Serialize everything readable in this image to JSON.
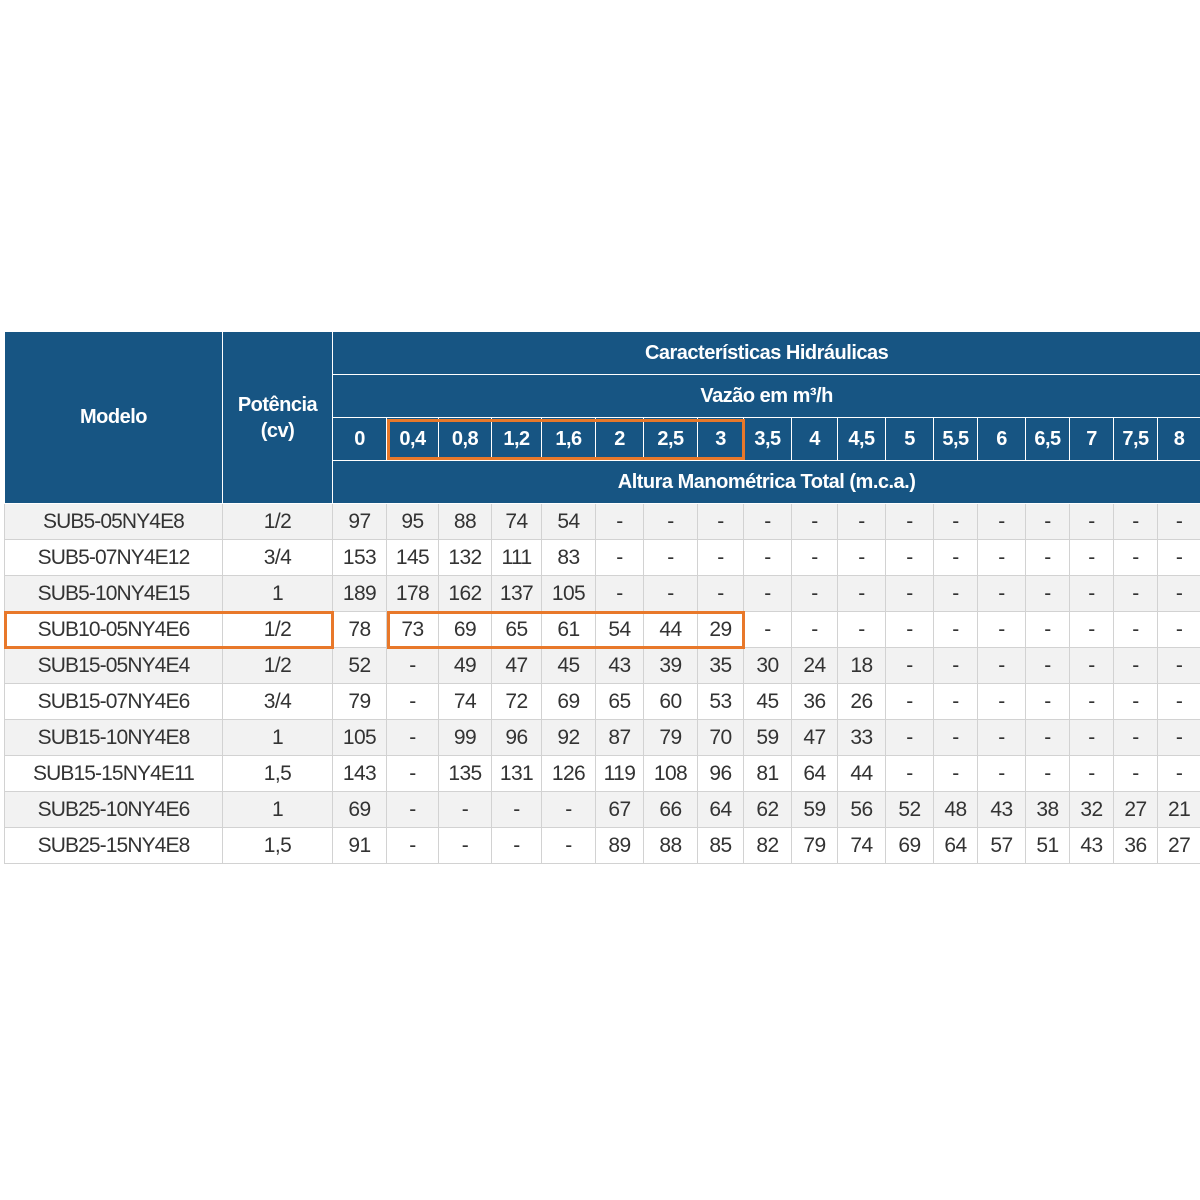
{
  "table": {
    "header": {
      "model": "Modelo",
      "power": "Potência\n(cv)",
      "group": "Características Hidráulicas",
      "flow": "Vazão em m³/h",
      "height": "Altura Manométrica Total (m.c.a.)"
    },
    "flows": [
      "0",
      "0,4",
      "0,8",
      "1,2",
      "1,6",
      "2",
      "2,5",
      "3",
      "3,5",
      "4",
      "4,5",
      "5",
      "5,5",
      "6",
      "6,5",
      "7",
      "7,5",
      "8"
    ],
    "rows": [
      {
        "model": "SUB5-05NY4E8",
        "power": "1/2",
        "values": [
          "97",
          "95",
          "88",
          "74",
          "54",
          "-",
          "-",
          "-",
          "-",
          "-",
          "-",
          "-",
          "-",
          "-",
          "-",
          "-",
          "-",
          "-"
        ]
      },
      {
        "model": "SUB5-07NY4E12",
        "power": "3/4",
        "values": [
          "153",
          "145",
          "132",
          "111",
          "83",
          "-",
          "-",
          "-",
          "-",
          "-",
          "-",
          "-",
          "-",
          "-",
          "-",
          "-",
          "-",
          "-"
        ]
      },
      {
        "model": "SUB5-10NY4E15",
        "power": "1",
        "values": [
          "189",
          "178",
          "162",
          "137",
          "105",
          "-",
          "-",
          "-",
          "-",
          "-",
          "-",
          "-",
          "-",
          "-",
          "-",
          "-",
          "-",
          "-"
        ]
      },
      {
        "model": "SUB10-05NY4E6",
        "power": "1/2",
        "values": [
          "78",
          "73",
          "69",
          "65",
          "61",
          "54",
          "44",
          "29",
          "-",
          "-",
          "-",
          "-",
          "-",
          "-",
          "-",
          "-",
          "-",
          "-"
        ]
      },
      {
        "model": "SUB15-05NY4E4",
        "power": "1/2",
        "values": [
          "52",
          "-",
          "49",
          "47",
          "45",
          "43",
          "39",
          "35",
          "30",
          "24",
          "18",
          "-",
          "-",
          "-",
          "-",
          "-",
          "-",
          "-"
        ]
      },
      {
        "model": "SUB15-07NY4E6",
        "power": "3/4",
        "values": [
          "79",
          "-",
          "74",
          "72",
          "69",
          "65",
          "60",
          "53",
          "45",
          "36",
          "26",
          "-",
          "-",
          "-",
          "-",
          "-",
          "-",
          "-"
        ]
      },
      {
        "model": "SUB15-10NY4E8",
        "power": "1",
        "values": [
          "105",
          "-",
          "99",
          "96",
          "92",
          "87",
          "79",
          "70",
          "59",
          "47",
          "33",
          "-",
          "-",
          "-",
          "-",
          "-",
          "-",
          "-"
        ]
      },
      {
        "model": "SUB15-15NY4E11",
        "power": "1,5",
        "values": [
          "143",
          "-",
          "135",
          "131",
          "126",
          "119",
          "108",
          "96",
          "81",
          "64",
          "44",
          "-",
          "-",
          "-",
          "-",
          "-",
          "-",
          "-"
        ]
      },
      {
        "model": "SUB25-10NY4E6",
        "power": "1",
        "values": [
          "69",
          "-",
          "-",
          "-",
          "-",
          "67",
          "66",
          "64",
          "62",
          "59",
          "56",
          "52",
          "48",
          "43",
          "38",
          "32",
          "27",
          "21"
        ]
      },
      {
        "model": "SUB25-15NY4E8",
        "power": "1,5",
        "values": [
          "91",
          "-",
          "-",
          "-",
          "-",
          "89",
          "88",
          "85",
          "82",
          "79",
          "74",
          "69",
          "64",
          "57",
          "51",
          "43",
          "36",
          "27"
        ]
      }
    ]
  },
  "highlight": {
    "color": "#e8782a",
    "row": 3,
    "col_from": 1,
    "col_to": 7
  },
  "colors": {
    "header_bg": "#175583",
    "header_text": "#ffffff",
    "row_odd": "#f2f2f2",
    "row_even": "#ffffff"
  }
}
